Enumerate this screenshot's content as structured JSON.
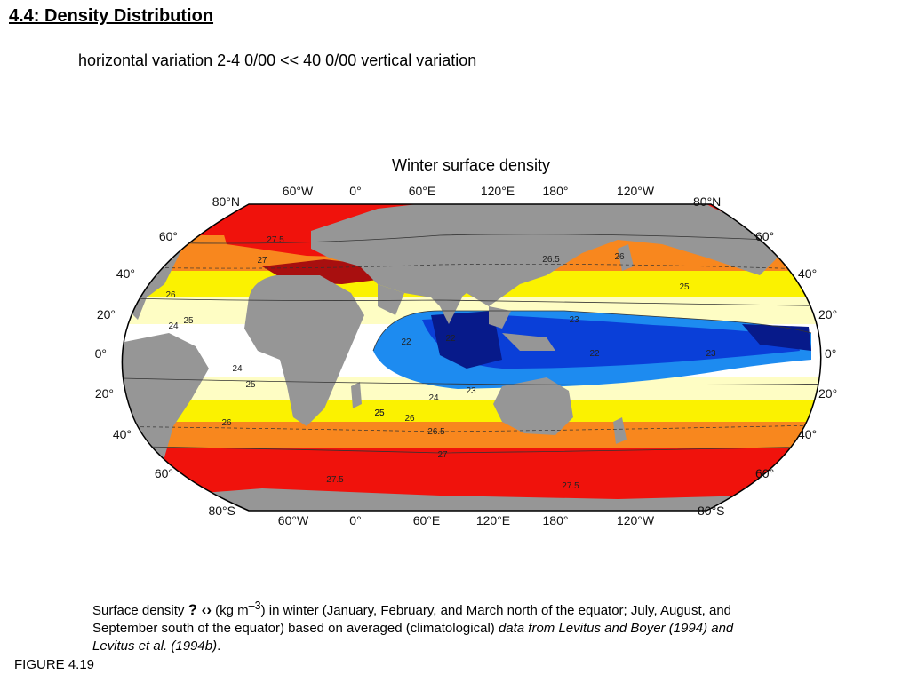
{
  "heading": "4.4: Density Distribution",
  "subheading": "horizontal variation   2-4  0/00  << 40   0/00  vertical variation",
  "map": {
    "title": "Winter surface density",
    "longitude_labels_top": [
      "60°W",
      "0°",
      "60°E",
      "120°E",
      "180°",
      "120°W"
    ],
    "longitude_labels_bottom": [
      "60°W",
      "0°",
      "60°E",
      "120°E",
      "180°",
      "120°W"
    ],
    "latitude_labels_left": [
      "80°N",
      "60°",
      "40°",
      "20°",
      "0°",
      "20°",
      "40°",
      "60°",
      "80°S"
    ],
    "latitude_labels_right": [
      "80°N",
      "60°",
      "40°",
      "20°",
      "0°",
      "20°",
      "40°",
      "60°",
      "80°S"
    ],
    "contour_labels": [
      "27.5",
      "27",
      "26",
      "25",
      "24",
      "24",
      "25",
      "26",
      "25",
      "26",
      "26.5",
      "27",
      "27.5",
      "26.5",
      "26",
      "25",
      "23",
      "22",
      "22",
      "22",
      "23",
      "23",
      "24",
      "25",
      "27.5"
    ],
    "colors": {
      "land": "#969696",
      "red": "#f0120c",
      "dark_red": "#a80f0f",
      "orange": "#f8871e",
      "yellow": "#fbf200",
      "pale_yellow": "#fefdc4",
      "white": "#ffffff",
      "light_blue": "#1d8bf0",
      "blue": "#0a3fd8",
      "dark_blue": "#071a8a"
    }
  },
  "caption": {
    "part1": "Surface density",
    "glyph": "? ‹›",
    "part2": "(kg m",
    "sup": "–3",
    "part3": ") in winter (January, February, and March north of the equator; July, August, and September south of the equator) based on averaged (climatological) ",
    "italic": "data from Levitus and Boyer (1994) and Levitus et al. (1994b)",
    "end": "."
  },
  "figure_label": "FIGURE 4.19"
}
